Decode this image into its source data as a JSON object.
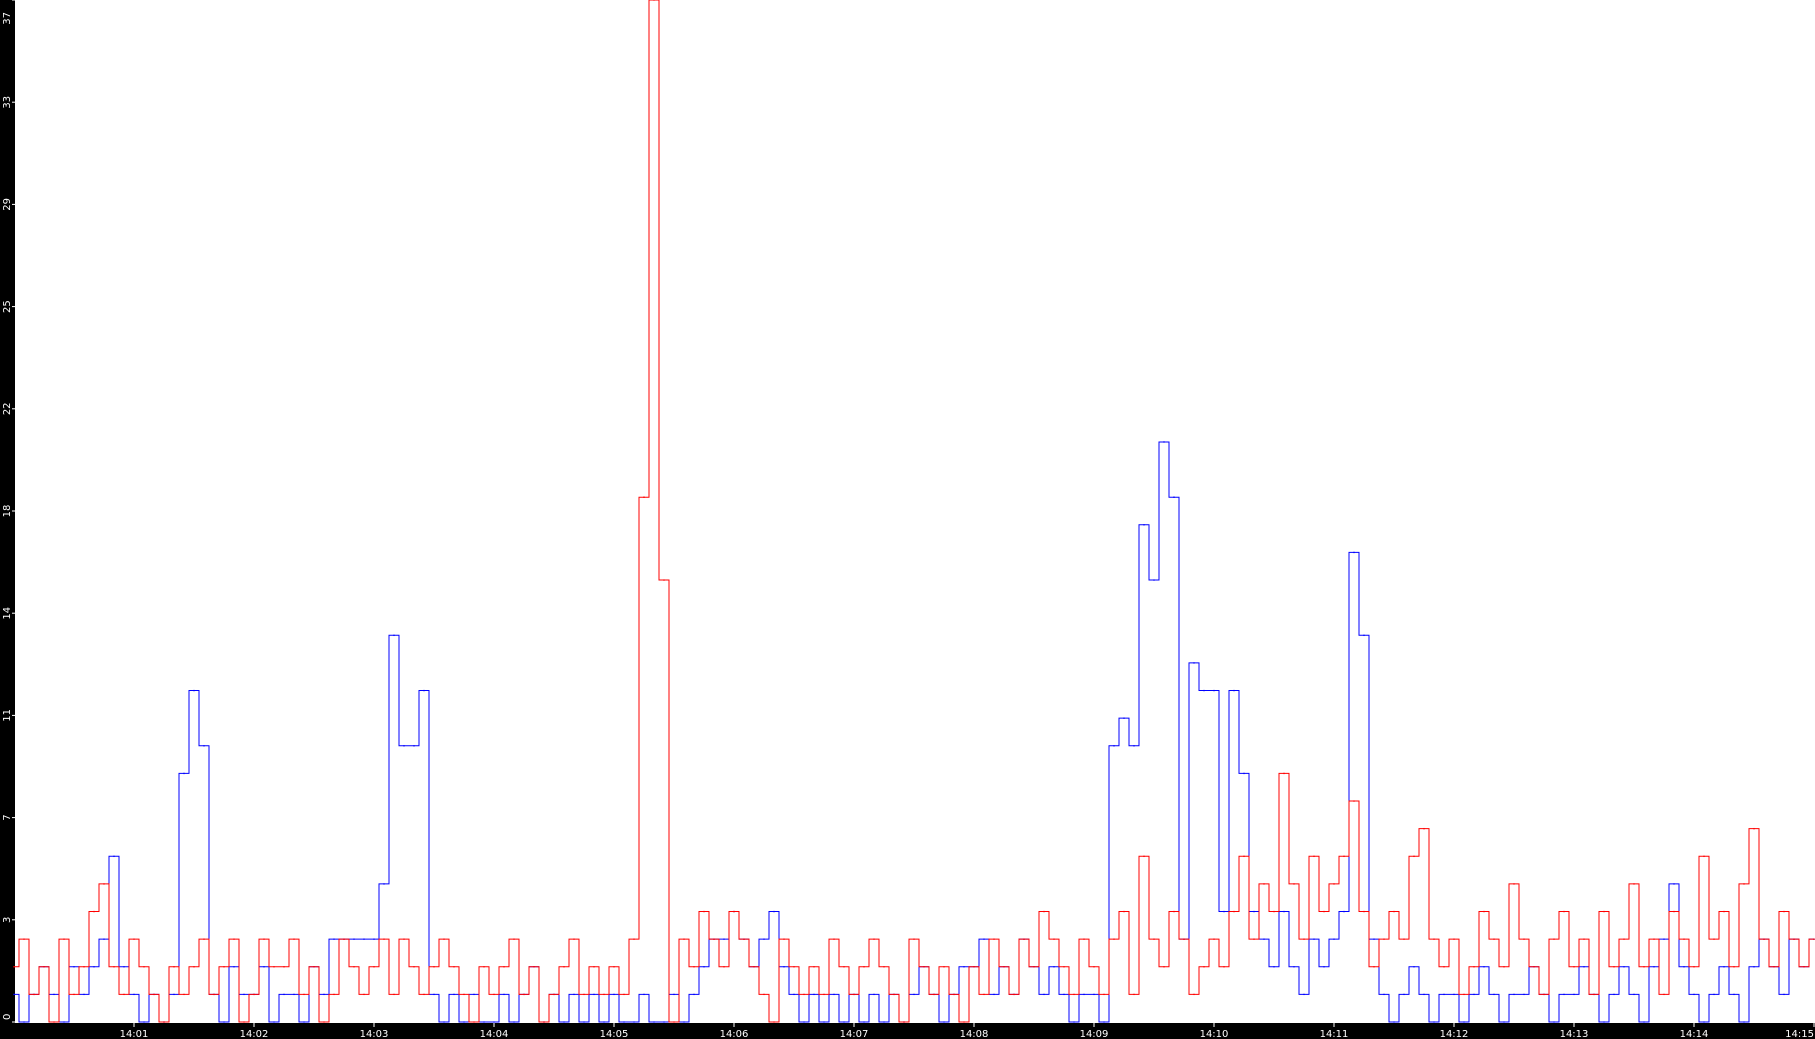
{
  "chart_data": {
    "type": "line",
    "title": "",
    "xlabel": "",
    "ylabel": "",
    "x_ticks": [
      "14:01",
      "14:02",
      "14:03",
      "14:04",
      "14:05",
      "14:06",
      "14:07",
      "14:08",
      "14:09",
      "14:10",
      "14:11",
      "14:12",
      "14:13",
      "14:14",
      "14:15"
    ],
    "y_ticks": [
      "0",
      "3",
      "7",
      "11",
      "14",
      "18",
      "22",
      "25",
      "29",
      "33",
      "37"
    ],
    "xlim": [
      "14:00:00",
      "14:15:00"
    ],
    "ylim": [
      0,
      37
    ],
    "grid": false,
    "legend": "none",
    "background": "#ffffff",
    "frame_color": "#000000",
    "sample_interval": "5s",
    "series": [
      {
        "color": "#0000ff",
        "points_by_minute": {
          "14:00": [
            1,
            0,
            1,
            2,
            1,
            0,
            2,
            1,
            2,
            3,
            6,
            2
          ],
          "14:01": [
            1,
            0,
            1,
            0,
            1,
            9,
            12,
            10,
            1,
            0,
            2,
            1
          ],
          "14:02": [
            1,
            2,
            0,
            1,
            1,
            0,
            2,
            1,
            3,
            3,
            3,
            3
          ],
          "14:03": [
            3,
            5,
            14,
            10,
            10,
            12,
            1,
            0,
            1,
            0,
            1,
            0
          ],
          "14:04": [
            0,
            1,
            0,
            1,
            2,
            0,
            1,
            0,
            1,
            0,
            1,
            0
          ],
          "14:05": [
            1,
            0,
            0,
            1,
            0,
            0,
            1,
            0,
            1,
            2,
            3,
            3
          ],
          "14:06": [
            4,
            3,
            2,
            3,
            4,
            2,
            1,
            0,
            1,
            0,
            1,
            0
          ],
          "14:07": [
            1,
            0,
            1,
            0,
            1,
            0,
            1,
            2,
            1,
            0,
            1,
            2
          ],
          "14:08": [
            2,
            3,
            1,
            2,
            1,
            3,
            2,
            1,
            2,
            1,
            0,
            1
          ],
          "14:09": [
            1,
            0,
            10,
            11,
            10,
            18,
            16,
            21,
            19,
            3,
            13,
            12
          ],
          "14:10": [
            12,
            4,
            12,
            9,
            4,
            3,
            2,
            4,
            2,
            1,
            3,
            2
          ],
          "14:11": [
            3,
            4,
            17,
            14,
            3,
            1,
            0,
            1,
            2,
            1,
            0,
            1
          ],
          "14:12": [
            1,
            0,
            1,
            2,
            1,
            0,
            1,
            1,
            2,
            1,
            0,
            1
          ],
          "14:13": [
            1,
            2,
            1,
            0,
            1,
            2,
            1,
            0,
            2,
            3,
            5,
            2
          ],
          "14:14": [
            1,
            0,
            1,
            2,
            1,
            0,
            2,
            3,
            2,
            1,
            3,
            2
          ],
          "14:15": [
            3
          ]
        }
      },
      {
        "color": "#ff0000",
        "points_by_minute": {
          "14:00": [
            2,
            3,
            1,
            2,
            0,
            3,
            1,
            2,
            4,
            5,
            2,
            1
          ],
          "14:01": [
            3,
            2,
            1,
            0,
            2,
            1,
            2,
            3,
            1,
            2,
            3,
            0
          ],
          "14:02": [
            1,
            3,
            2,
            2,
            3,
            1,
            2,
            0,
            1,
            3,
            2,
            1
          ],
          "14:03": [
            2,
            3,
            1,
            3,
            2,
            1,
            2,
            3,
            2,
            1,
            0,
            2
          ],
          "14:04": [
            1,
            2,
            3,
            1,
            2,
            0,
            1,
            2,
            3,
            1,
            2,
            1
          ],
          "14:05": [
            2,
            1,
            3,
            19,
            37,
            16,
            0,
            3,
            2,
            4,
            3,
            2
          ],
          "14:06": [
            4,
            3,
            2,
            1,
            0,
            3,
            2,
            1,
            2,
            1,
            3,
            2
          ],
          "14:07": [
            1,
            2,
            3,
            2,
            1,
            0,
            3,
            2,
            1,
            2,
            1,
            0
          ],
          "14:08": [
            2,
            1,
            3,
            2,
            1,
            3,
            2,
            4,
            3,
            2,
            1,
            3
          ],
          "14:09": [
            2,
            1,
            3,
            4,
            1,
            6,
            3,
            2,
            4,
            3,
            1,
            2
          ],
          "14:10": [
            3,
            2,
            4,
            6,
            3,
            5,
            4,
            9,
            5,
            3,
            6,
            4
          ],
          "14:11": [
            5,
            6,
            8,
            4,
            2,
            3,
            4,
            3,
            6,
            7,
            3,
            2
          ],
          "14:12": [
            3,
            1,
            2,
            4,
            3,
            2,
            5,
            3,
            2,
            1,
            3,
            4
          ],
          "14:13": [
            2,
            3,
            1,
            4,
            2,
            3,
            5,
            2,
            3,
            1,
            4,
            3
          ],
          "14:14": [
            2,
            6,
            3,
            4,
            2,
            5,
            7,
            3,
            2,
            4,
            3,
            2
          ],
          "14:15": [
            3
          ]
        }
      }
    ]
  }
}
